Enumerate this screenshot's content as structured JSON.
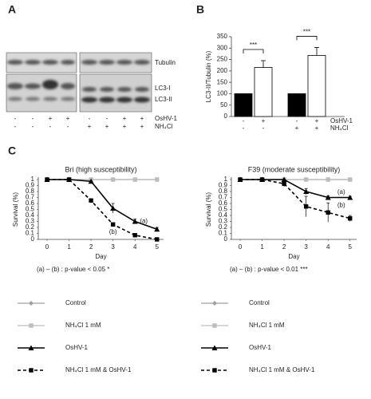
{
  "panels": {
    "a": "A",
    "b": "B",
    "c": "C"
  },
  "blot": {
    "bands": [
      "Tubulin",
      "LC3-I",
      "LC3-II"
    ],
    "rows": [
      {
        "label": "OsHV-1",
        "signs": [
          "-",
          "-",
          "+",
          "+",
          "-",
          "-",
          "+",
          "+"
        ]
      },
      {
        "label": "NH₄Cl",
        "signs": [
          "-",
          "-",
          "-",
          "-",
          "+",
          "+",
          "+",
          "+"
        ]
      }
    ]
  },
  "chart_data": [
    {
      "type": "bar",
      "ylabel": "LC3-II/Tubulin (%)",
      "values": [
        100,
        215,
        100,
        268
      ],
      "errors": [
        0,
        30,
        0,
        35
      ],
      "colors": [
        "#000000",
        "#ffffff",
        "#000000",
        "#ffffff"
      ],
      "ylim": [
        0,
        350
      ],
      "yticks": [
        0,
        50,
        100,
        150,
        200,
        250,
        300,
        350
      ],
      "significance": [
        "***",
        "***"
      ],
      "conditions": [
        {
          "label": "OsHV-1",
          "signs": [
            "-",
            "+",
            "-",
            "+"
          ]
        },
        {
          "label": "NH₄Cl",
          "signs": [
            "-",
            "-",
            "+",
            "+"
          ]
        }
      ]
    },
    {
      "type": "line",
      "title": "Bri (high susceptibility)",
      "xlabel": "Day",
      "ylabel": "Survival (%)",
      "x": [
        0,
        1,
        2,
        3,
        4,
        5
      ],
      "xlim": [
        -0.4,
        5.3
      ],
      "xticks": [
        0,
        1,
        2,
        3,
        4,
        5
      ],
      "ylim": [
        0,
        1
      ],
      "yticks": [
        0,
        0.1,
        0.2,
        0.3,
        0.4,
        0.5,
        0.6,
        0.7,
        0.8,
        0.9,
        1
      ],
      "series": [
        {
          "name": "Control",
          "color": "#a0a0a0",
          "marker": "diamond",
          "dashed": false,
          "values": [
            1,
            1,
            1,
            1,
            1,
            1
          ],
          "errors": [
            0,
            0,
            0,
            0,
            0,
            0
          ]
        },
        {
          "name": "NH₄Cl 1 mM",
          "color": "#bdbdbd",
          "marker": "square",
          "dashed": false,
          "values": [
            1,
            1,
            1,
            1,
            1,
            1
          ],
          "errors": [
            0,
            0,
            0,
            0,
            0,
            0
          ]
        },
        {
          "name": "OsHV-1",
          "color": "#000000",
          "marker": "triangle",
          "dashed": false,
          "values": [
            1,
            1,
            0.97,
            0.52,
            0.3,
            0.17
          ],
          "errors": [
            0,
            0,
            0,
            0.08,
            0.04,
            0.03
          ]
        },
        {
          "name": "NH₄Cl 1 mM & OsHV-1",
          "color": "#000000",
          "marker": "square",
          "dashed": true,
          "values": [
            1,
            1,
            0.65,
            0.25,
            0.07,
            0
          ],
          "errors": [
            0,
            0,
            0.03,
            0.02,
            0.01,
            0
          ]
        }
      ],
      "annotations": [
        {
          "text": "(a)",
          "x": 4.4,
          "y": 0.3
        },
        {
          "text": "(b)",
          "x": 3,
          "y": 0.12
        }
      ],
      "note": "(a) – (b) : p-value < 0.05   *"
    },
    {
      "type": "line",
      "title": "F39 (moderate susceptibility)",
      "xlabel": "Day",
      "ylabel": "Survival (%)",
      "x": [
        0,
        1,
        2,
        3,
        4,
        5
      ],
      "xlim": [
        -0.4,
        5.3
      ],
      "xticks": [
        0,
        1,
        2,
        3,
        4,
        5
      ],
      "ylim": [
        0,
        1
      ],
      "yticks": [
        0,
        0.1,
        0.2,
        0.3,
        0.4,
        0.5,
        0.6,
        0.7,
        0.8,
        0.9,
        1
      ],
      "series": [
        {
          "name": "Control",
          "color": "#a0a0a0",
          "marker": "diamond",
          "dashed": false,
          "values": [
            1,
            1,
            1,
            1,
            1,
            1
          ],
          "errors": [
            0,
            0,
            0,
            0,
            0,
            0
          ]
        },
        {
          "name": "NH₄Cl 1 mM",
          "color": "#bdbdbd",
          "marker": "square",
          "dashed": false,
          "values": [
            1,
            1,
            1,
            1,
            1,
            1
          ],
          "errors": [
            0,
            0,
            0,
            0,
            0,
            0
          ]
        },
        {
          "name": "OsHV-1",
          "color": "#000000",
          "marker": "triangle",
          "dashed": false,
          "values": [
            1,
            1,
            1,
            0.8,
            0.7,
            0.7
          ],
          "errors": [
            0,
            0,
            0,
            0.05,
            0.03,
            0.02
          ]
        },
        {
          "name": "NH₄Cl 1 mM & OsHV-1",
          "color": "#000000",
          "marker": "square",
          "dashed": true,
          "values": [
            1,
            1,
            0.93,
            0.55,
            0.45,
            0.35
          ],
          "errors": [
            0,
            0,
            0.05,
            0.17,
            0.16,
            0.05
          ]
        }
      ],
      "annotations": [
        {
          "text": "(a)",
          "x": 4.6,
          "y": 0.79
        },
        {
          "text": "(b)",
          "x": 4.6,
          "y": 0.57
        }
      ],
      "note": "(a) – (b) : p-value < 0.01   ***"
    }
  ]
}
